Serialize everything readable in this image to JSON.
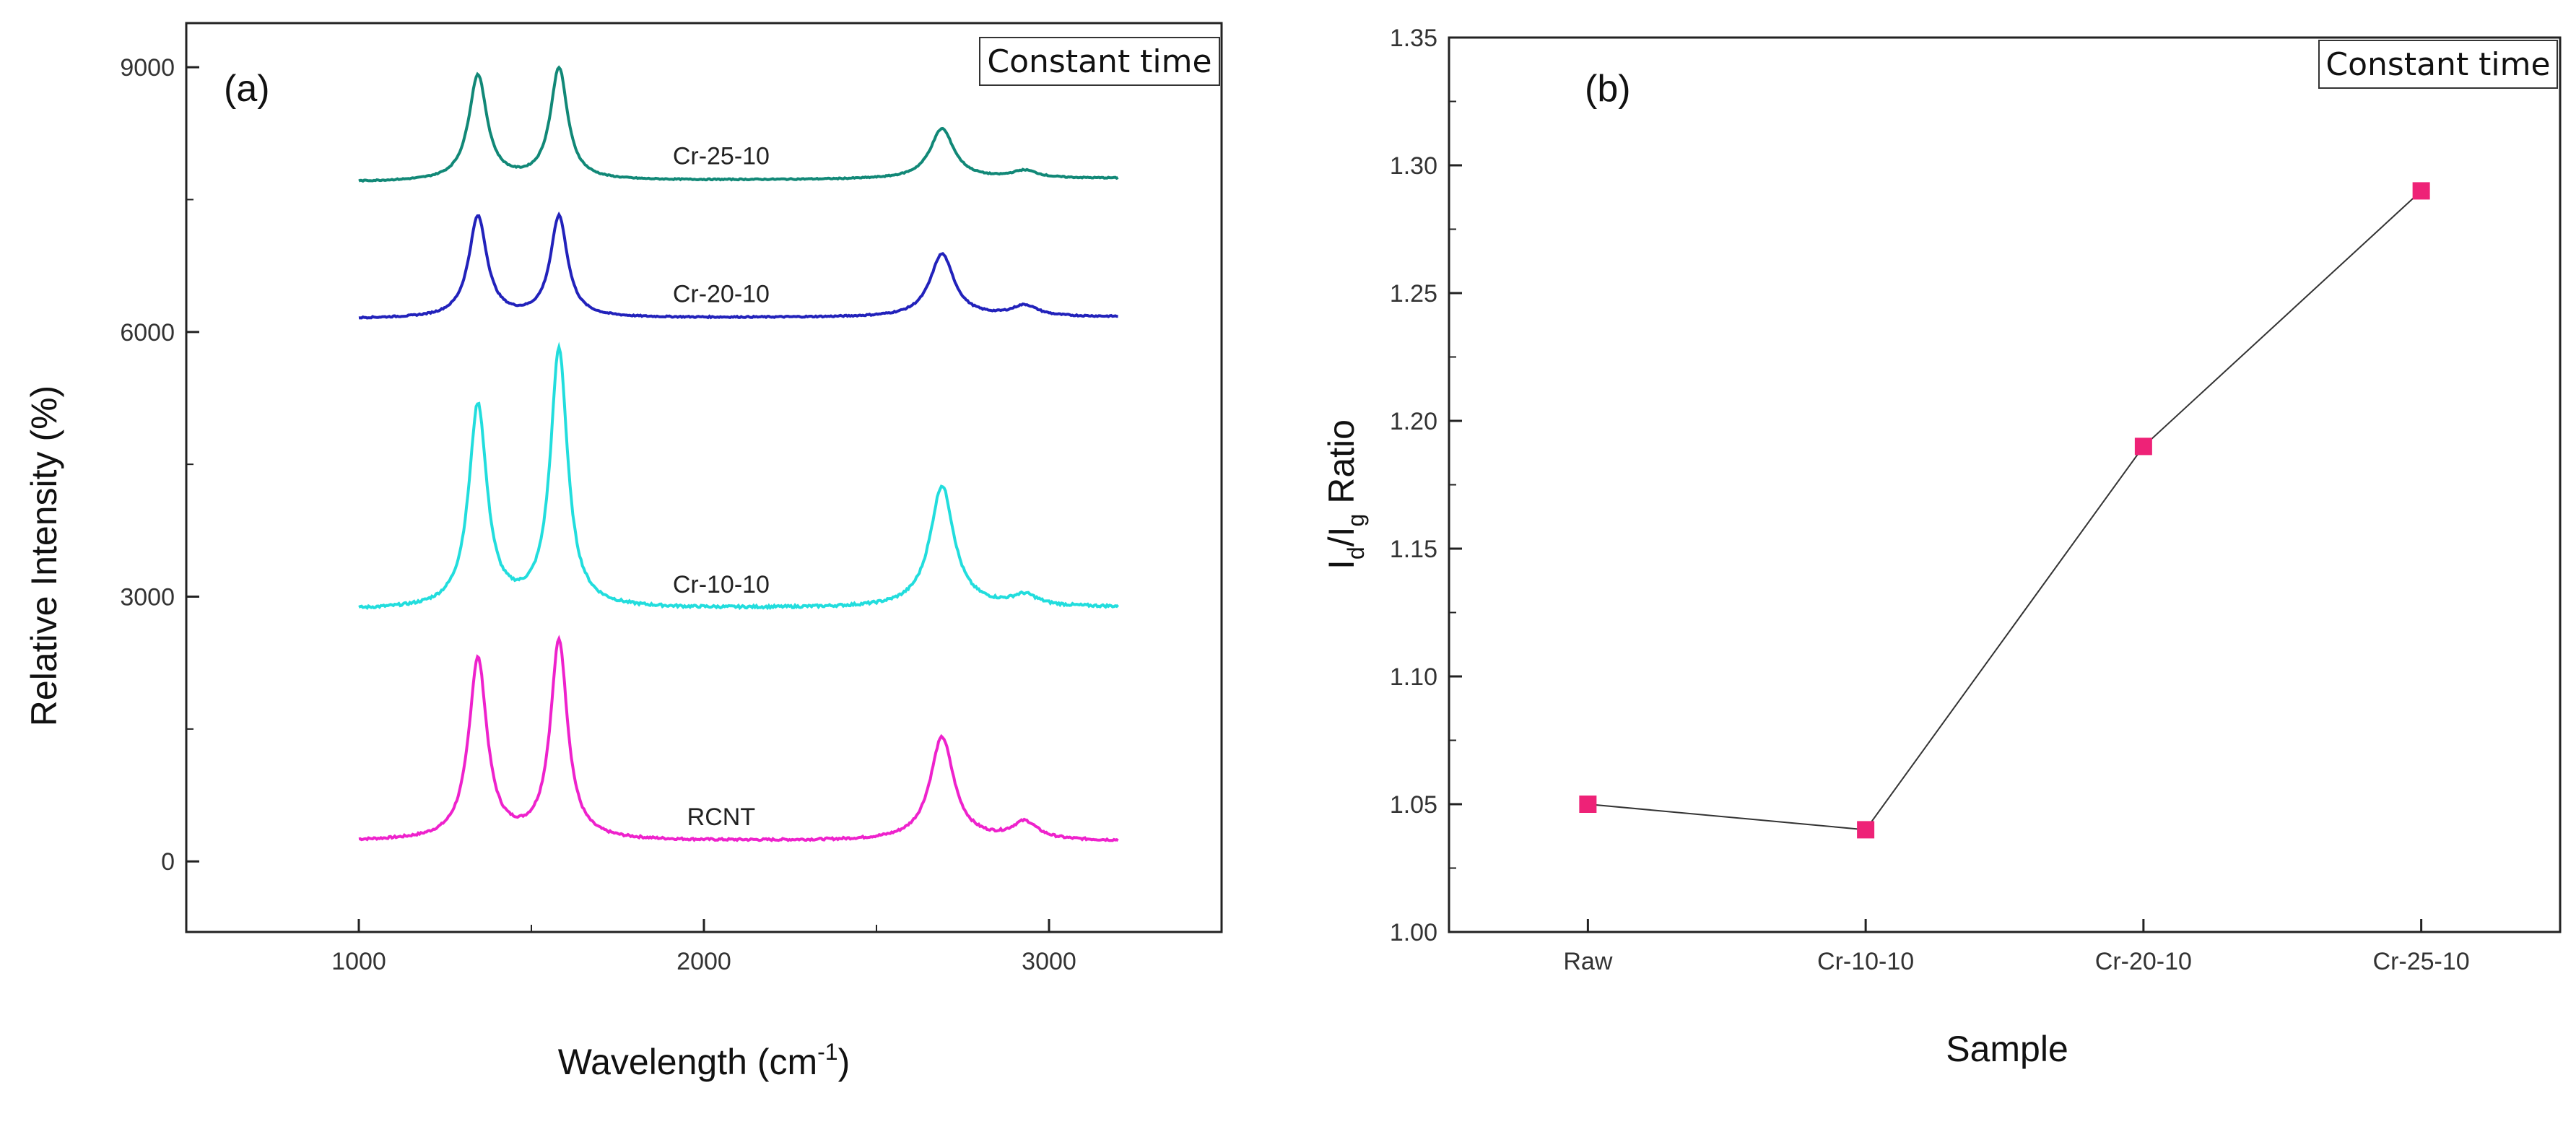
{
  "chart_data": [
    {
      "type": "line",
      "panel_label": "(a)",
      "legend_box": "Constant time",
      "xlabel_main": "Wavelength (cm",
      "xlabel_sup": "-1",
      "xlabel_close": ")",
      "ylabel": "Relative Intensity (%)",
      "xlim": [
        500,
        3500
      ],
      "ylim": [
        -800,
        9500
      ],
      "x_ticks": [
        "1000",
        "2000",
        "3000"
      ],
      "y_ticks": [
        "0",
        "3000",
        "6000",
        "9000"
      ],
      "peaks": {
        "D_band_cm": 1345,
        "G_band_cm": 1580,
        "twoD_band_cm": 2690,
        "D_plus_G_band_cm": 2930
      },
      "series": [
        {
          "name": "RCNT",
          "color": "#ee22cc",
          "baseline_at_1000": 230,
          "baseline_at_3200": 230,
          "D_peak": 2280,
          "G_peak": 2480,
          "twoD_peak": 1400,
          "DG_peak": 430
        },
        {
          "name": "Cr-10-10",
          "color": "#22dddd",
          "baseline_at_1000": 2850,
          "baseline_at_3200": 2880,
          "D_peak": 5150,
          "G_peak": 5780,
          "twoD_peak": 4250,
          "DG_peak": 3000
        },
        {
          "name": "Cr-20-10",
          "color": "#2222bb",
          "baseline_at_1000": 6150,
          "baseline_at_3200": 6170,
          "D_peak": 7300,
          "G_peak": 7300,
          "twoD_peak": 6880,
          "DG_peak": 6290
        },
        {
          "name": "Cr-25-10",
          "color": "#118877",
          "baseline_at_1000": 7700,
          "baseline_at_3200": 7740,
          "D_peak": 8900,
          "G_peak": 8980,
          "twoD_peak": 8300,
          "DG_peak": 7820
        }
      ]
    },
    {
      "type": "line",
      "panel_label": "(b)",
      "legend_box": "Constant time",
      "xlabel": "Sample",
      "ylabel_main": "I",
      "ylabel_sub1": "d",
      "ylabel_slash": "/I",
      "ylabel_sub2": "g",
      "ylabel_rest": " Ratio",
      "ylim": [
        1.0,
        1.35
      ],
      "y_ticks": [
        "1.00",
        "1.05",
        "1.10",
        "1.15",
        "1.20",
        "1.25",
        "1.30",
        "1.35"
      ],
      "categories": [
        "Raw",
        "Cr-10-10",
        "Cr-20-10",
        "Cr-25-10"
      ],
      "values": [
        1.05,
        1.04,
        1.19,
        1.29
      ],
      "marker_color": "#ee2277",
      "line_color": "#333333"
    }
  ]
}
